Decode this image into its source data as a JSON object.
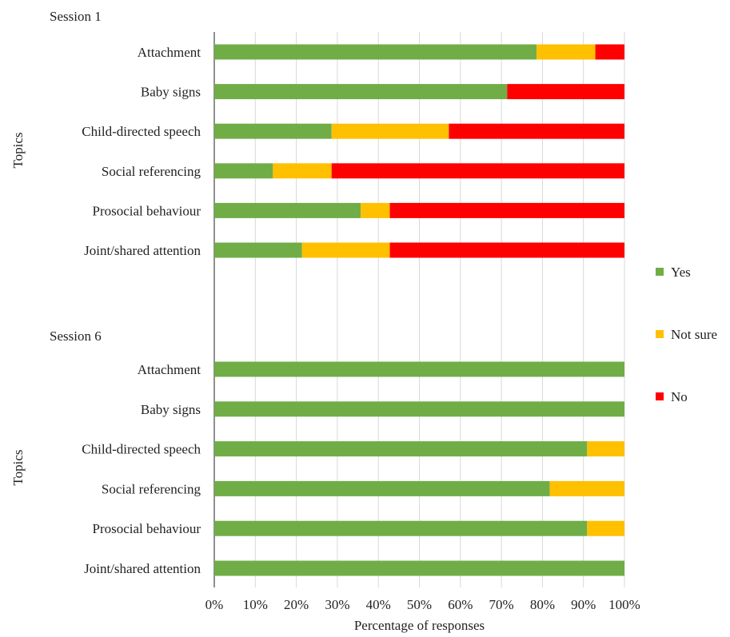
{
  "chart_data": {
    "type": "bar",
    "orientation": "horizontal",
    "stacked": true,
    "xlabel": "Percentage of responses",
    "ylabel": "Topics",
    "xlim": [
      0,
      100
    ],
    "xticks": [
      "0%",
      "10%",
      "20%",
      "30%",
      "40%",
      "50%",
      "60%",
      "70%",
      "80%",
      "90%",
      "100%"
    ],
    "grid": "vertical",
    "legend": {
      "placement": "right",
      "entries": [
        {
          "name": "Yes",
          "color": "#70ad47"
        },
        {
          "name": "Not sure",
          "color": "#ffc000"
        },
        {
          "name": "No",
          "color": "#ff0000"
        }
      ]
    },
    "panels": [
      {
        "title": "Session 1",
        "categories": [
          "Attachment",
          "Baby signs",
          "Child-directed speech",
          "Social referencing",
          "Prosocial behaviour",
          "Joint/shared attention"
        ],
        "series": [
          {
            "name": "Yes",
            "values": [
              78.6,
              71.4,
              28.6,
              14.3,
              35.7,
              21.4
            ]
          },
          {
            "name": "Not sure",
            "values": [
              14.3,
              0,
              28.6,
              14.3,
              7.1,
              21.4
            ]
          },
          {
            "name": "No",
            "values": [
              7.1,
              28.6,
              42.8,
              71.4,
              57.2,
              57.2
            ]
          }
        ]
      },
      {
        "title": "Session 6",
        "categories": [
          "Attachment",
          "Baby signs",
          "Child-directed speech",
          "Social referencing",
          "Prosocial behaviour",
          "Joint/shared attention"
        ],
        "series": [
          {
            "name": "Yes",
            "values": [
              100,
              100,
              90.9,
              81.8,
              90.9,
              100
            ]
          },
          {
            "name": "Not sure",
            "values": [
              0,
              0,
              9.1,
              18.2,
              9.1,
              0
            ]
          },
          {
            "name": "No",
            "values": [
              0,
              0,
              0,
              0,
              0,
              0
            ]
          }
        ]
      }
    ]
  }
}
